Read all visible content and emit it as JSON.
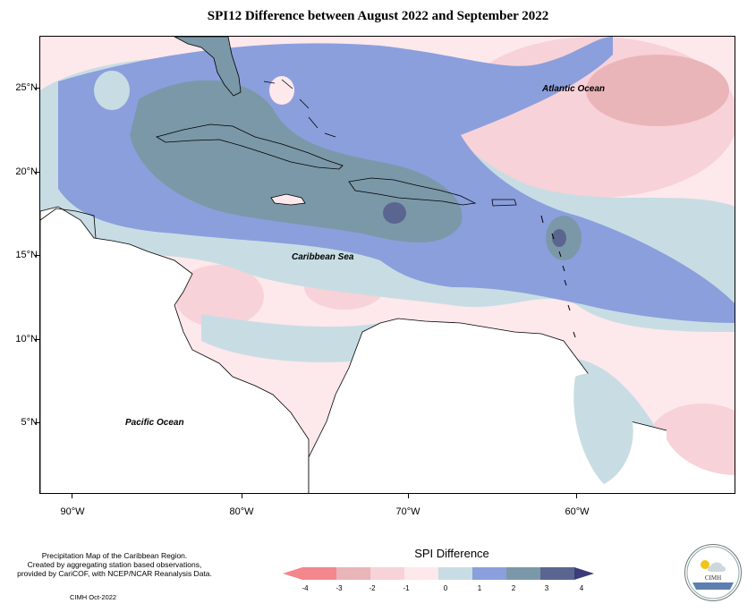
{
  "title": "SPI12 Difference between August 2022 and September 2022",
  "map": {
    "lat_labels": [
      "25°N",
      "20°N",
      "15°N",
      "10°N",
      "5°N"
    ],
    "lon_labels": [
      "90°W",
      "80°W",
      "70°W",
      "60°W"
    ],
    "region_labels": {
      "atlantic": "Atlantic Ocean",
      "caribbean": "Caribbean Sea",
      "pacific": "Pacific Ocean"
    }
  },
  "footer": {
    "line1": "Precipitation Map of the Caribbean Region.",
    "line2": "Created by aggregating station based observations,",
    "line3": "provided by CariCOF, with NCEP/NCAR Reanalysis Data.",
    "credit": "CIMH Oct-2022"
  },
  "legend": {
    "title": "SPI Difference",
    "ticks": [
      "-4",
      "-3",
      "-2",
      "-1",
      "0",
      "1",
      "2",
      "3",
      "4"
    ],
    "colors": [
      "#f4868e",
      "#e9b5b9",
      "#f7d2d8",
      "#fde8ec",
      "#c8dde3",
      "#8b9fdd",
      "#7b98a8",
      "#5a6690",
      "#3c3c7a"
    ]
  },
  "logo": {
    "text": "CIMH"
  }
}
